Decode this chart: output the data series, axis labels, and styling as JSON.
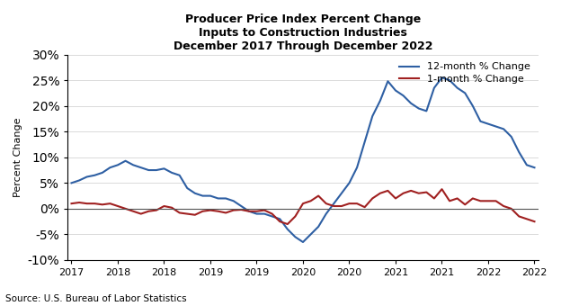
{
  "title_line1": "Producer Price Index Percent Change",
  "title_line2": "Inputs to Construction Industries",
  "title_line3": "December 2017 Through December 2022",
  "source": "Source: U.S. Bureau of Labor Statistics",
  "ylabel": "Percent Change",
  "legend_12month": "12-month % Change",
  "legend_1month": "1-month % Change",
  "color_12month": "#2E5FA3",
  "color_1month": "#A02020",
  "ylim": [
    -10,
    30
  ],
  "yticks": [
    -10,
    -5,
    0,
    5,
    10,
    15,
    20,
    25,
    30
  ],
  "x_tick_positions": [
    0,
    6,
    12,
    18,
    24,
    30,
    36,
    42,
    48,
    54,
    60
  ],
  "x_labels": [
    "2017",
    "2018",
    "2018",
    "2019",
    "2019",
    "2020",
    "2020",
    "2021",
    "2021",
    "2022",
    "2022"
  ],
  "data_12month": [
    5.0,
    5.5,
    6.2,
    6.5,
    7.0,
    8.0,
    8.5,
    9.3,
    8.5,
    8.0,
    7.5,
    7.5,
    7.8,
    7.0,
    6.5,
    4.0,
    3.0,
    2.5,
    2.5,
    2.0,
    2.0,
    1.5,
    0.5,
    -0.5,
    -1.0,
    -1.0,
    -1.5,
    -2.0,
    -4.0,
    -5.5,
    -6.5,
    -5.0,
    -3.5,
    -1.0,
    1.0,
    3.0,
    5.0,
    8.0,
    13.0,
    18.0,
    21.0,
    24.8,
    23.0,
    22.0,
    20.5,
    19.5,
    19.0,
    23.5,
    25.5,
    25.0,
    23.5,
    22.5,
    20.0,
    17.0,
    16.5,
    16.0,
    15.5,
    14.0,
    11.0,
    8.5,
    8.0
  ],
  "data_1month": [
    1.0,
    1.2,
    1.0,
    1.0,
    0.8,
    1.0,
    0.5,
    0.0,
    -0.5,
    -1.0,
    -0.5,
    -0.3,
    0.5,
    0.2,
    -0.8,
    -1.0,
    -1.2,
    -0.5,
    -0.3,
    -0.5,
    -0.8,
    -0.3,
    -0.2,
    -0.5,
    -0.5,
    -0.3,
    -1.0,
    -2.5,
    -3.0,
    -1.5,
    1.0,
    1.5,
    2.5,
    1.0,
    0.5,
    0.5,
    1.0,
    1.0,
    0.3,
    2.0,
    3.0,
    3.5,
    2.0,
    3.0,
    3.5,
    3.0,
    3.2,
    2.0,
    3.8,
    1.5,
    2.0,
    0.8,
    2.0,
    1.5,
    1.5,
    1.5,
    0.5,
    0.0,
    -1.5,
    -2.0,
    -2.5
  ]
}
